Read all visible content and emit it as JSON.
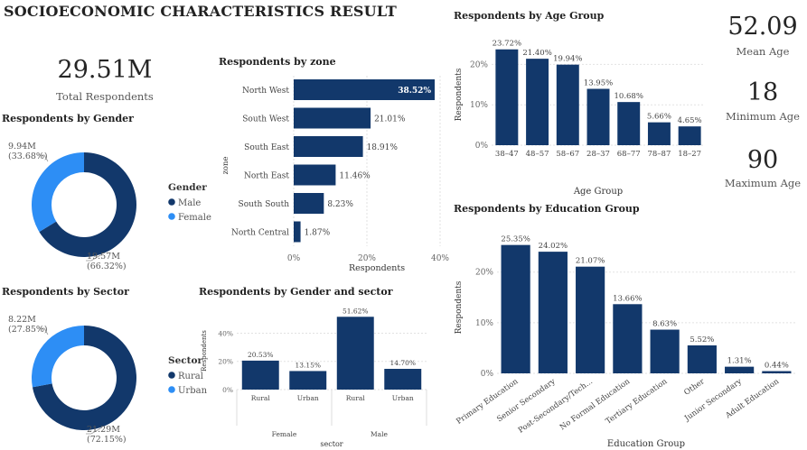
{
  "page": {
    "title": "SOCIOECONOMIC CHARACTERISTICS RESULT"
  },
  "colors": {
    "dark": "#12386b",
    "light": "#2d8ef5",
    "text": "#333333",
    "muted": "#666666"
  },
  "kpis": {
    "total": {
      "value": "29.51M",
      "label": "Total Respondents"
    },
    "mean_age": {
      "value": "52.09",
      "label": "Mean Age"
    },
    "min_age": {
      "value": "18",
      "label": "Minimum Age"
    },
    "max_age": {
      "value": "90",
      "label": "Maximum Age"
    }
  },
  "chart_data": [
    {
      "id": "gender",
      "type": "pie",
      "title": "Respondents by Gender",
      "legend_title": "Gender",
      "slices": [
        {
          "name": "Male",
          "value": 19.57,
          "label": "19.57M",
          "pct": "(66.32%)",
          "color": "#12386b"
        },
        {
          "name": "Female",
          "value": 9.94,
          "label": "9.94M",
          "pct": "(33.68%)",
          "color": "#2d8ef5"
        }
      ]
    },
    {
      "id": "sector",
      "type": "pie",
      "title": "Respondents by Sector",
      "legend_title": "Sector",
      "slices": [
        {
          "name": "Rural",
          "value": 21.29,
          "label": "21.29M",
          "pct": "(72.15%)",
          "color": "#12386b"
        },
        {
          "name": "Urban",
          "value": 8.22,
          "label": "8.22M",
          "pct": "(27.85%)",
          "color": "#2d8ef5"
        }
      ]
    },
    {
      "id": "zone",
      "type": "bar",
      "orientation": "horizontal",
      "title": "Respondents by zone",
      "xlabel": "Respondents",
      "ylabel": "zone",
      "xlim": [
        0,
        40
      ],
      "ticks": [
        "0%",
        "20%",
        "40%"
      ],
      "categories": [
        "North West",
        "South West",
        "South East",
        "North East",
        "South South",
        "North Central"
      ],
      "values": [
        38.52,
        21.01,
        18.91,
        11.46,
        8.23,
        1.87
      ],
      "labels": [
        "38.52%",
        "21.01%",
        "18.91%",
        "11.46%",
        "8.23%",
        "1.87%"
      ]
    },
    {
      "id": "age",
      "type": "bar",
      "title": "Respondents by Age Group",
      "xlabel": "Age Group",
      "ylabel": "Respondents",
      "ylim": [
        0,
        25
      ],
      "ticks": [
        "0%",
        "10%",
        "20%"
      ],
      "categories": [
        "38–47",
        "48–57",
        "58–67",
        "28–37",
        "68–77",
        "78–87",
        "18–27"
      ],
      "values": [
        23.72,
        21.4,
        19.94,
        13.95,
        10.68,
        5.66,
        4.65
      ],
      "labels": [
        "23.72%",
        "21.40%",
        "19.94%",
        "13.95%",
        "10.68%",
        "5.66%",
        "4.65%"
      ]
    },
    {
      "id": "gender_sector",
      "type": "bar",
      "title": "Respondents by Gender and sector",
      "xlabel": "sector",
      "ylabel": "Respondents",
      "ylim": [
        0,
        55
      ],
      "ticks": [
        "0%",
        "20%",
        "40%"
      ],
      "categories": [
        "Rural",
        "Urban",
        "Rural",
        "Urban"
      ],
      "groups": [
        "Female",
        "Male"
      ],
      "values": [
        20.53,
        13.15,
        51.62,
        14.7
      ],
      "labels": [
        "20.53%",
        "13.15%",
        "51.62%",
        "14.70%"
      ]
    },
    {
      "id": "education",
      "type": "bar",
      "title": "Respondents by Education Group",
      "xlabel": "Education Group",
      "ylabel": "Respondents",
      "ylim": [
        0,
        26
      ],
      "ticks": [
        "0%",
        "10%",
        "20%"
      ],
      "categories": [
        "Primary Education",
        "Senior Secondary",
        "Post-Secondary/Tech...",
        "No Formal Education",
        "Tertiary Education",
        "Other",
        "Junior Secondary",
        "Adult Education"
      ],
      "values": [
        25.35,
        24.02,
        21.07,
        13.66,
        8.63,
        5.52,
        1.31,
        0.44
      ],
      "labels": [
        "25.35%",
        "24.02%",
        "21.07%",
        "13.66%",
        "8.63%",
        "5.52%",
        "1.31%",
        "0.44%"
      ]
    }
  ]
}
